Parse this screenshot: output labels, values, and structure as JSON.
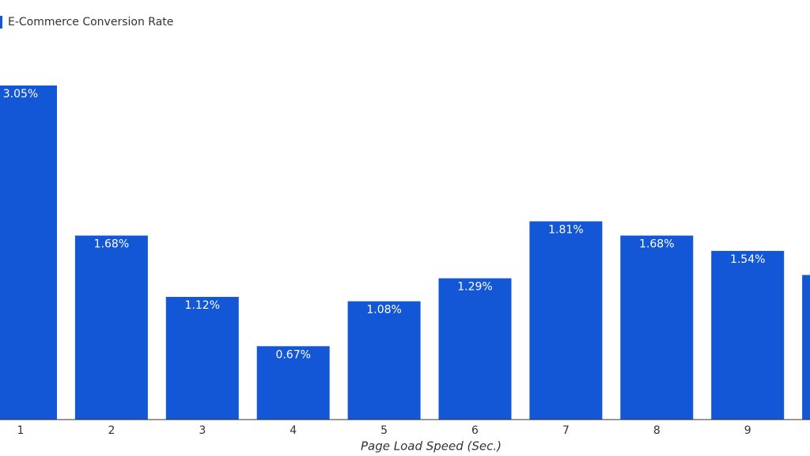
{
  "chart_data": {
    "type": "bar",
    "x_label": "Page Load Speed (Sec.)",
    "categories": [
      "1",
      "2",
      "3",
      "4",
      "5",
      "6",
      "7",
      "8",
      "9",
      null
    ],
    "series": [
      {
        "name": "E-Commerce Conversion Rate",
        "color": "#1357d6",
        "values": [
          3.05,
          1.68,
          1.12,
          0.67,
          1.08,
          1.29,
          1.81,
          1.68,
          1.54,
          1.32
        ],
        "value_labels": [
          "3.05%",
          "1.68%",
          "1.12%",
          "0.67%",
          "1.08%",
          "1.29%",
          "1.81%",
          "1.68%",
          "1.54%",
          null
        ]
      }
    ]
  }
}
